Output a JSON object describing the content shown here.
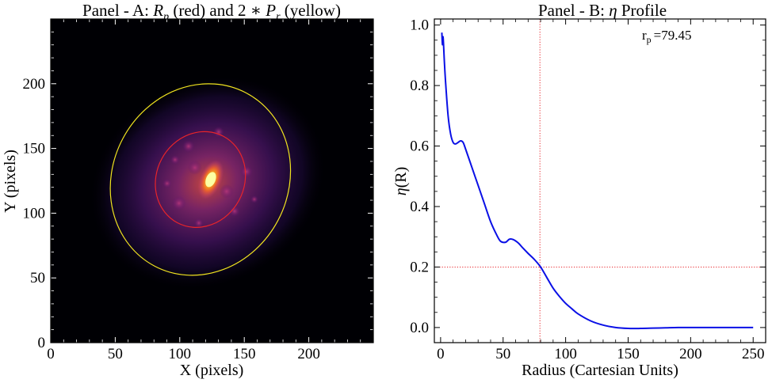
{
  "chart_data": [
    {
      "type": "image",
      "title_parts": {
        "prefix": "Panel - A: ",
        "rp_symbol": "R",
        "rp_sub": "p",
        "mid": " (red) and 2 ∗ ",
        "pr_symbol": "P",
        "pr_sub": "r",
        "suffix": " (yellow)"
      },
      "xlabel": "X (pixels)",
      "ylabel": "Y (pixels)",
      "xlim": [
        0,
        250
      ],
      "ylim": [
        0,
        250
      ],
      "xticks": [
        0,
        50,
        100,
        150,
        200
      ],
      "yticks": [
        0,
        50,
        100,
        150,
        200
      ],
      "colormap": "inferno",
      "galaxy": {
        "center": [
          124,
          126
        ],
        "pa_deg": 28
      },
      "ellipses": [
        {
          "name": "Rp",
          "color": "#e8242a",
          "cx": 116,
          "cy": 126,
          "a": 38,
          "b": 34,
          "angle_deg": 28
        },
        {
          "name": "2Pr",
          "color": "#f1e41f",
          "cx": 116,
          "cy": 126,
          "a": 76,
          "b": 68,
          "angle_deg": 28
        }
      ]
    },
    {
      "type": "line",
      "title_parts": {
        "prefix": "Panel - B: ",
        "symbol": "η",
        "suffix": " Profile"
      },
      "xlabel": "Radius (Cartesian Units)",
      "ylabel_parts": {
        "symbol": "η",
        "suffix": "(R)"
      },
      "xlim": [
        -5,
        260
      ],
      "ylim": [
        -0.05,
        1.02
      ],
      "xticks": [
        0,
        50,
        100,
        150,
        200,
        250
      ],
      "yticks": [
        0.0,
        0.2,
        0.4,
        0.6,
        0.8,
        1.0
      ],
      "ytick_labels": [
        "0.0",
        "0.2",
        "0.4",
        "0.6",
        "0.8",
        "1.0"
      ],
      "annotation": {
        "base": "r",
        "sub": "p",
        "value": "=79.45"
      },
      "reference_lines": {
        "x": 79.45,
        "y": 0.2,
        "color": "#e8242a"
      },
      "series": [
        {
          "color": "#0a10e6",
          "x": [
            1,
            1.5,
            2,
            3,
            4,
            6,
            8,
            10,
            12,
            14,
            16,
            18,
            20,
            25,
            30,
            35,
            40,
            45,
            48,
            52,
            55,
            58,
            62,
            66,
            70,
            75,
            80,
            85,
            90,
            95,
            100,
            105,
            110,
            120,
            130,
            140,
            150,
            160,
            170,
            180,
            190,
            200,
            210,
            220,
            230,
            240,
            250
          ],
          "y": [
            0.975,
            0.935,
            0.96,
            0.88,
            0.81,
            0.7,
            0.64,
            0.612,
            0.607,
            0.612,
            0.617,
            0.612,
            0.59,
            0.53,
            0.47,
            0.41,
            0.35,
            0.305,
            0.285,
            0.282,
            0.292,
            0.291,
            0.28,
            0.262,
            0.245,
            0.225,
            0.2,
            0.165,
            0.13,
            0.103,
            0.08,
            0.062,
            0.045,
            0.022,
            0.008,
            0.0,
            -0.003,
            -0.003,
            -0.002,
            -0.001,
            0.0,
            0.0,
            0.0,
            0.0,
            0.0,
            0.0,
            0.0
          ]
        }
      ]
    }
  ]
}
